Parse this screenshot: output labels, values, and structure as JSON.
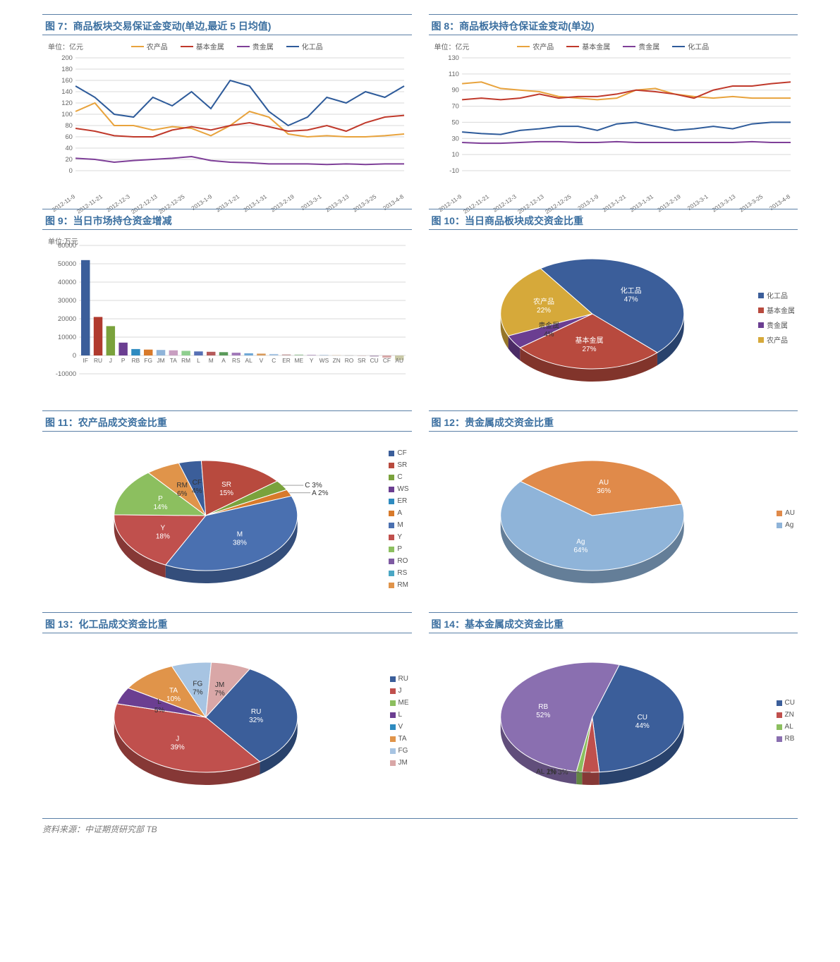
{
  "source_text": "资料来源：中证期货研究部 TB",
  "fig7": {
    "title": "图 7：商品板块交易保证金变动(单边,最近 5 日均值)",
    "unit": "单位：亿元",
    "type": "line",
    "ylim": [
      0,
      200
    ],
    "ytick_step": 20,
    "x_labels": [
      "2012-11-9",
      "2012-11-21",
      "2012-12-3",
      "2012-12-13",
      "2012-12-25",
      "2013-1-9",
      "2013-1-21",
      "2013-1-31",
      "2013-2-19",
      "2013-3-1",
      "2013-3-13",
      "2013-3-25",
      "2013-4-8"
    ],
    "grid_color": "#d9d9d9",
    "series": [
      {
        "name": "农产品",
        "color": "#e8a33d",
        "data": [
          105,
          120,
          80,
          80,
          72,
          78,
          75,
          62,
          80,
          105,
          95,
          65,
          60,
          62,
          60,
          60,
          62,
          65
        ]
      },
      {
        "name": "基本金属",
        "color": "#c0392b",
        "data": [
          75,
          70,
          62,
          60,
          60,
          72,
          78,
          72,
          80,
          85,
          78,
          70,
          72,
          80,
          70,
          85,
          95,
          98
        ]
      },
      {
        "name": "贵金属",
        "color": "#7e3f98",
        "data": [
          22,
          20,
          15,
          18,
          20,
          22,
          25,
          18,
          15,
          14,
          12,
          12,
          12,
          11,
          12,
          11,
          12,
          12
        ]
      },
      {
        "name": "化工品",
        "color": "#2e5b9a",
        "data": [
          150,
          130,
          100,
          95,
          130,
          115,
          140,
          110,
          160,
          150,
          105,
          80,
          95,
          130,
          120,
          140,
          130,
          150
        ]
      }
    ]
  },
  "fig8": {
    "title": "图 8：商品板块持仓保证金变动(单边)",
    "unit": "单位：亿元",
    "type": "line",
    "ylim": [
      -10,
      130
    ],
    "ytick_step": 20,
    "x_labels": [
      "2012-11-9",
      "2012-11-21",
      "2012-12-3",
      "2012-12-13",
      "2012-12-25",
      "2013-1-9",
      "2013-1-21",
      "2013-1-31",
      "2013-2-19",
      "2013-3-1",
      "2013-3-13",
      "2013-3-25",
      "2013-4-8"
    ],
    "grid_color": "#d9d9d9",
    "series": [
      {
        "name": "农产品",
        "color": "#e8a33d",
        "data": [
          98,
          100,
          92,
          90,
          88,
          82,
          80,
          78,
          80,
          90,
          92,
          85,
          82,
          80,
          82,
          80,
          80,
          80
        ]
      },
      {
        "name": "基本金属",
        "color": "#c0392b",
        "data": [
          78,
          80,
          78,
          80,
          85,
          80,
          82,
          82,
          85,
          90,
          88,
          85,
          80,
          90,
          95,
          95,
          98,
          100
        ]
      },
      {
        "name": "贵金属",
        "color": "#7e3f98",
        "data": [
          25,
          24,
          24,
          25,
          26,
          26,
          25,
          25,
          26,
          25,
          25,
          25,
          25,
          25,
          25,
          26,
          25,
          25
        ]
      },
      {
        "name": "化工品",
        "color": "#2e5b9a",
        "data": [
          38,
          36,
          35,
          40,
          42,
          45,
          45,
          40,
          48,
          50,
          45,
          40,
          42,
          45,
          42,
          48,
          50,
          50
        ]
      }
    ]
  },
  "fig9": {
    "title": "图 9：当日市场持仓资金增减",
    "unit": "单位:万元",
    "type": "bar",
    "ylim": [
      -10000,
      60000
    ],
    "ytick_step": 10000,
    "grid_color": "#d9d9d9",
    "categories": [
      "IF",
      "RU",
      "J",
      "P",
      "RB",
      "FG",
      "JM",
      "TA",
      "RM",
      "L",
      "M",
      "A",
      "RS",
      "AL",
      "V",
      "C",
      "ER",
      "ME",
      "Y",
      "WS",
      "ZN",
      "RO",
      "SR",
      "CU",
      "CF",
      "AU"
    ],
    "values": [
      52000,
      21000,
      16000,
      7000,
      3500,
      3200,
      3000,
      2800,
      2500,
      2200,
      2000,
      1800,
      1500,
      1200,
      1000,
      800,
      600,
      500,
      400,
      300,
      200,
      100,
      -200,
      -600,
      -1200,
      -2500
    ],
    "colors": [
      "#3b5e9a",
      "#b03a2e",
      "#7aa23c",
      "#6b3e91",
      "#2e8bc0",
      "#d87a2b",
      "#8fb4d9",
      "#c99fc1",
      "#8fcf8f",
      "#5670b5",
      "#b55a5a",
      "#5a9a5a",
      "#a078b8",
      "#6fa8d6",
      "#d89a5a",
      "#a7c4e2",
      "#c9a7a7",
      "#a7c9a7",
      "#bfa7c9",
      "#a7bfd6",
      "#d6bfa7",
      "#aaaaaa",
      "#c2a7a7",
      "#b8a7bf",
      "#d6a7a7",
      "#c9c9a7"
    ]
  },
  "fig10": {
    "title": "图 10：当日商品板块成交资金比重",
    "type": "pie",
    "slices": [
      {
        "name": "化工品",
        "value": 47,
        "color": "#3b5e9a"
      },
      {
        "name": "基本金属",
        "value": 27,
        "color": "#b84a3e"
      },
      {
        "name": "贵金属",
        "value": 4,
        "color": "#6b3e91"
      },
      {
        "name": "农产品",
        "value": 22,
        "color": "#d6a93a"
      }
    ],
    "legend_colors": {
      "化工品": "#3b5e9a",
      "基本金属": "#b84a3e",
      "贵金属": "#6b3e91",
      "农产品": "#d6a93a"
    }
  },
  "fig11": {
    "title": "图 11：农产品成交资金比重",
    "type": "pie",
    "slices": [
      {
        "name": "CF",
        "value": 4,
        "color": "#3b5e9a"
      },
      {
        "name": "SR",
        "value": 15,
        "color": "#b84a3e"
      },
      {
        "name": "C",
        "value": 3,
        "color": "#7aa23c"
      },
      {
        "name": "WS",
        "value": 0,
        "color": "#6b3e91"
      },
      {
        "name": "ER",
        "value": 0,
        "color": "#2e8bc0"
      },
      {
        "name": "A",
        "value": 2,
        "color": "#d87a2b"
      },
      {
        "name": "M",
        "value": 38,
        "color": "#4a70b0"
      },
      {
        "name": "Y",
        "value": 18,
        "color": "#c0504d"
      },
      {
        "name": "P",
        "value": 14,
        "color": "#8cbf5f"
      },
      {
        "name": "RO",
        "value": 0,
        "color": "#7e5aa2"
      },
      {
        "name": "RS",
        "value": 0,
        "color": "#4aa7c4"
      },
      {
        "name": "RM",
        "value": 6,
        "color": "#e0944a"
      }
    ]
  },
  "fig12": {
    "title": "图 12：贵金属成交资金比重",
    "type": "pie",
    "slices": [
      {
        "name": "AU",
        "value": 36,
        "color": "#e08a4a"
      },
      {
        "name": "Ag",
        "value": 64,
        "color": "#8fb4d9"
      }
    ]
  },
  "fig13": {
    "title": "图 13：化工品成交资金比重",
    "type": "pie",
    "slices": [
      {
        "name": "RU",
        "value": 32,
        "color": "#3b5e9a"
      },
      {
        "name": "J",
        "value": 39,
        "color": "#c0504d"
      },
      {
        "name": "ME",
        "value": 0,
        "color": "#8cbf5f"
      },
      {
        "name": "L",
        "value": 5,
        "color": "#6b3e91"
      },
      {
        "name": "V",
        "value": 0,
        "color": "#2e8bc0"
      },
      {
        "name": "TA",
        "value": 10,
        "color": "#e0944a"
      },
      {
        "name": "FG",
        "value": 7,
        "color": "#a7c4e2"
      },
      {
        "name": "JM",
        "value": 7,
        "color": "#d9a7a7"
      }
    ]
  },
  "fig14": {
    "title": "图 14：基本金属成交资金比重",
    "type": "pie",
    "slices": [
      {
        "name": "CU",
        "value": 44,
        "color": "#3b5e9a"
      },
      {
        "name": "ZN",
        "value": 3,
        "color": "#c0504d"
      },
      {
        "name": "AL",
        "value": 1,
        "color": "#8cbf5f"
      },
      {
        "name": "RB",
        "value": 52,
        "color": "#8a6fb0"
      }
    ]
  }
}
